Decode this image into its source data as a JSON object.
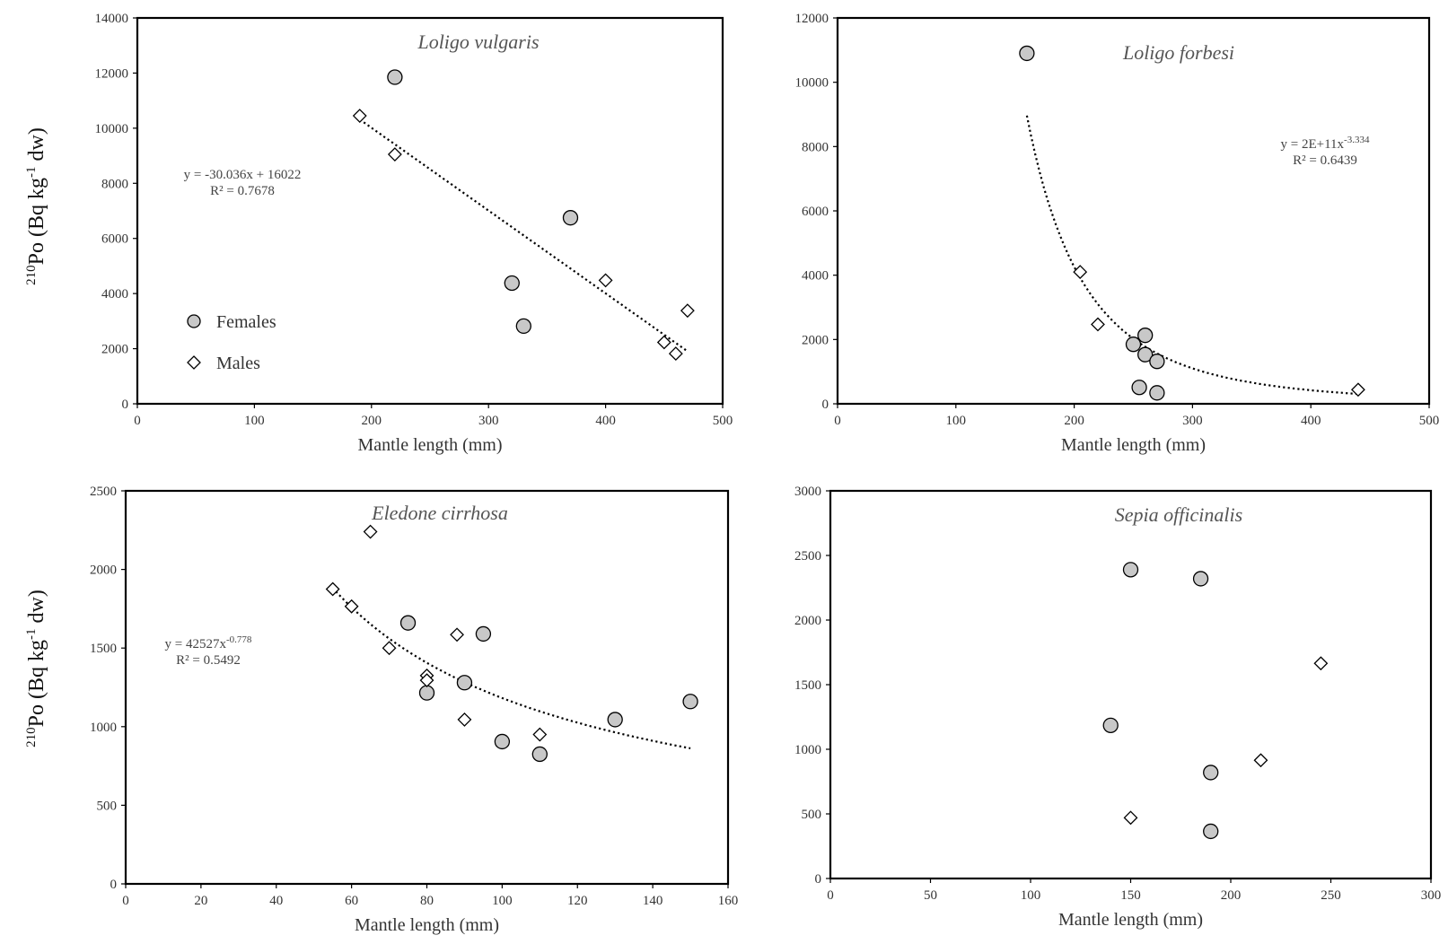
{
  "ylabel": {
    "base": "Po (Bq kg",
    "pre_sup": "210",
    "mid_sup": "-1",
    "tail": " dw)"
  },
  "legend": {
    "females": "Females",
    "males": "Males"
  },
  "colors": {
    "female_fill": "#c8c8c8",
    "stroke": "#000000",
    "male_fill": "#ffffff"
  },
  "chart_data": [
    {
      "type": "scatter",
      "title": "Loligo vulgaris",
      "xlabel": "Mantle length (mm)",
      "xlim": [
        0,
        500
      ],
      "xticks": [
        0,
        100,
        200,
        300,
        400,
        500
      ],
      "ylim": [
        0,
        14000
      ],
      "yticks": [
        0,
        2000,
        4000,
        6000,
        8000,
        10000,
        12000,
        14000
      ],
      "series": [
        {
          "name": "Females",
          "marker": "circle",
          "x": [
            220,
            370,
            320,
            330
          ],
          "y": [
            11850,
            6750,
            4380,
            2820
          ]
        },
        {
          "name": "Males",
          "marker": "diamond",
          "x": [
            190,
            220,
            400,
            470,
            450,
            460
          ],
          "y": [
            10450,
            9050,
            4480,
            3380,
            2230,
            1820
          ]
        }
      ],
      "trendline": {
        "kind": "linear",
        "a": -30.036,
        "b": 16022,
        "x_range": [
          190,
          470
        ]
      },
      "equation": {
        "line1": "y = -30.036x + 16022",
        "line1_sup": "",
        "line2": "R² = 0.7678"
      }
    },
    {
      "type": "scatter",
      "title": "Loligo forbesi",
      "xlabel": "Mantle length (mm)",
      "xlim": [
        0,
        500
      ],
      "xticks": [
        0,
        100,
        200,
        300,
        400,
        500
      ],
      "ylim": [
        0,
        12000
      ],
      "yticks": [
        0,
        2000,
        4000,
        6000,
        8000,
        10000,
        12000
      ],
      "series": [
        {
          "name": "Females",
          "marker": "circle",
          "x": [
            160,
            260,
            250,
            260,
            270,
            255,
            270
          ],
          "y": [
            10900,
            2130,
            1850,
            1530,
            1320,
            510,
            340
          ]
        },
        {
          "name": "Males",
          "marker": "diamond",
          "x": [
            205,
            220,
            440
          ],
          "y": [
            4100,
            2470,
            440
          ]
        }
      ],
      "trendline": {
        "kind": "power",
        "a": 200000000000.0,
        "b": -3.334,
        "x_range": [
          160,
          440
        ]
      },
      "equation": {
        "line1": "y = 2E+11x",
        "line1_sup": "-3.334",
        "line2": "R² = 0.6439"
      }
    },
    {
      "type": "scatter",
      "title": "Eledone cirrhosa",
      "xlabel": "Mantle length (mm)",
      "xlim": [
        0,
        160
      ],
      "xticks": [
        0,
        20,
        40,
        60,
        80,
        100,
        120,
        140,
        160
      ],
      "ylim": [
        0,
        2500
      ],
      "yticks": [
        0,
        500,
        1000,
        1500,
        2000,
        2500
      ],
      "series": [
        {
          "name": "Females",
          "marker": "circle",
          "x": [
            75,
            95,
            90,
            80,
            130,
            150,
            100,
            110
          ],
          "y": [
            1660,
            1590,
            1280,
            1215,
            1045,
            1160,
            905,
            825
          ]
        },
        {
          "name": "Males",
          "marker": "diamond",
          "x": [
            65,
            55,
            60,
            88,
            70,
            80,
            80,
            90,
            110
          ],
          "y": [
            2240,
            1875,
            1765,
            1585,
            1500,
            1325,
            1295,
            1045,
            950
          ]
        }
      ],
      "trendline": {
        "kind": "power",
        "a": 42527,
        "b": -0.778,
        "x_range": [
          55,
          150
        ]
      },
      "equation": {
        "line1": "y = 42527x",
        "line1_sup": "-0.778",
        "line2": "R² = 0.5492"
      }
    },
    {
      "type": "scatter",
      "title": "Sepia officinalis",
      "xlabel": "Mantle length (mm)",
      "xlim": [
        0,
        300
      ],
      "xticks": [
        0,
        50,
        100,
        150,
        200,
        250,
        300
      ],
      "ylim": [
        0,
        3000
      ],
      "yticks": [
        0,
        500,
        1000,
        1500,
        2000,
        2500,
        3000
      ],
      "series": [
        {
          "name": "Females",
          "marker": "circle",
          "x": [
            150,
            185,
            140,
            190,
            190
          ],
          "y": [
            2390,
            2320,
            1185,
            820,
            365
          ]
        },
        {
          "name": "Males",
          "marker": "diamond",
          "x": [
            245,
            215,
            150
          ],
          "y": [
            1665,
            915,
            470
          ]
        }
      ],
      "trendline": null,
      "equation": null
    }
  ]
}
